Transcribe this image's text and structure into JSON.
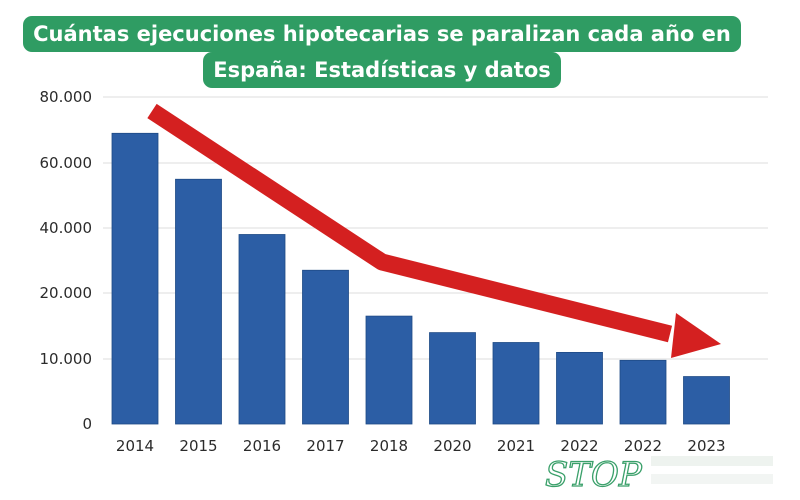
{
  "title_lines": [
    "Cuántas ejecuciones hipotecarias se paralizan cada año en",
    "España: Estadísticas y datos"
  ],
  "watermark_text": "STOP",
  "colors": {
    "bar": "#2c5ea5",
    "arrow": "#d42020",
    "title_background": "#2f9c63",
    "grid": "#dcdcdc",
    "watermark": "#3aa06a"
  },
  "chart_data": {
    "type": "bar",
    "title": "Cuántas ejecuciones hipotecarias se paralizan cada año en España: Estadísticas y datos",
    "xlabel": "",
    "ylabel": "",
    "categories": [
      "2014",
      "2015",
      "2016",
      "2017",
      "2018",
      "2020",
      "2021",
      "2022",
      "2022",
      "2023"
    ],
    "values": [
      69000,
      55000,
      38000,
      27000,
      16500,
      14000,
      12500,
      11000,
      9800,
      7300
    ],
    "yticks": [
      0,
      10000,
      20000,
      40000,
      60000,
      80000
    ],
    "ytick_labels": [
      "0",
      "10.000",
      "20.000",
      "40.000",
      "60.000",
      "80.000"
    ],
    "grid": true,
    "annotation": "red downward trend arrow"
  }
}
